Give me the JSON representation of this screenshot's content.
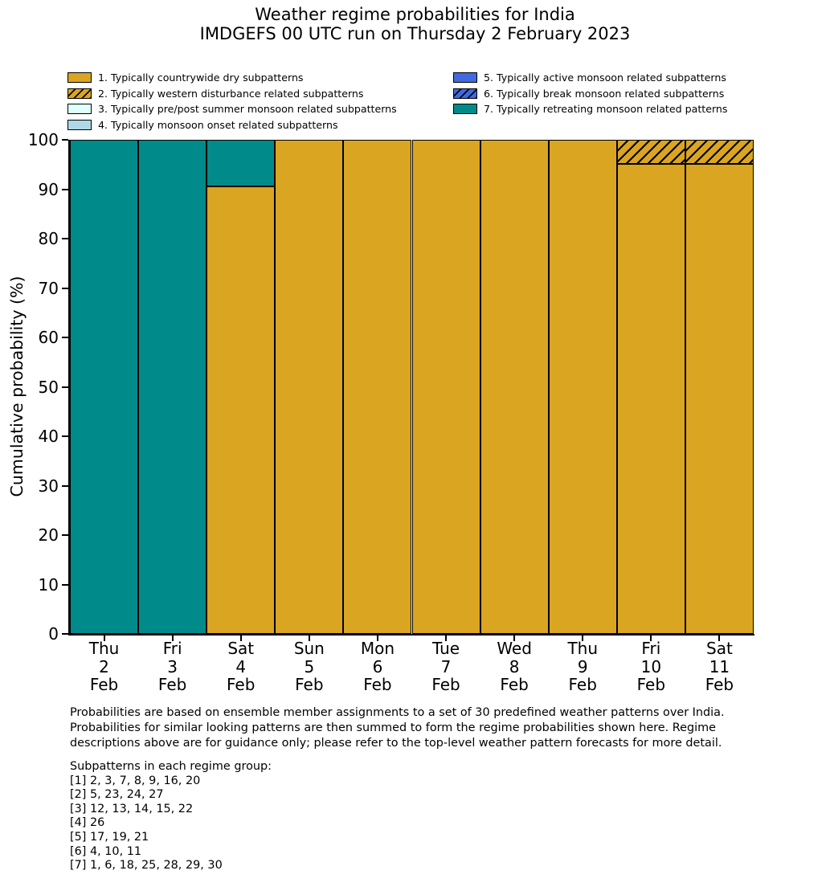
{
  "title": "Weather regime probabilities for India",
  "subtitle": "IMDGEFS 00 UTC run on Thursday 2 February 2023",
  "colors": {
    "regime_dry": "#DAA520",
    "regime_western_disturbance": "#DAA520",
    "regime_prepost_summer_monsoon": "#E0FFFF",
    "regime_monsoon_onset": "#ADD8E6",
    "regime_active_monsoon": "#4169E1",
    "regime_break_monsoon": "#4169E1",
    "regime_retreating_monsoon": "#008B8B",
    "edge": "#000000",
    "background": "#FFFFFF"
  },
  "legend": {
    "items": [
      {
        "label": "1. Typically countrywide dry subpatterns",
        "color": "#DAA520",
        "hatch": false,
        "column": 0
      },
      {
        "label": "2. Typically western disturbance related subpatterns",
        "color": "#DAA520",
        "hatch": true,
        "column": 0
      },
      {
        "label": "3. Typically pre/post summer monsoon related subpatterns",
        "color": "#E0FFFF",
        "hatch": false,
        "column": 0
      },
      {
        "label": "4. Typically monsoon onset related subpatterns",
        "color": "#ADD8E6",
        "hatch": false,
        "column": 0
      },
      {
        "label": "5. Typically active monsoon related subpatterns",
        "color": "#4169E1",
        "hatch": false,
        "column": 1
      },
      {
        "label": "6. Typically break monsoon related subpatterns",
        "color": "#4169E1",
        "hatch": true,
        "column": 1
      },
      {
        "label": "7. Typically retreating monsoon related patterns",
        "color": "#008B8B",
        "hatch": false,
        "column": 1
      }
    ]
  },
  "chart_data": {
    "type": "bar",
    "stacked": true,
    "title": "Weather regime probabilities for India",
    "subtitle": "IMDGEFS 00 UTC run on Thursday 2 February 2023",
    "xlabel": "",
    "ylabel": "Cumulative probability (%)",
    "ylim": [
      0,
      100
    ],
    "yticks": [
      0,
      10,
      20,
      30,
      40,
      50,
      60,
      70,
      80,
      90,
      100
    ],
    "grid": false,
    "legend_position": "upper-left-above-axes-two-columns",
    "categories": [
      [
        "Thu",
        "2",
        "Feb"
      ],
      [
        "Fri",
        "3",
        "Feb"
      ],
      [
        "Sat",
        "4",
        "Feb"
      ],
      [
        "Sun",
        "5",
        "Feb"
      ],
      [
        "Mon",
        "6",
        "Feb"
      ],
      [
        "Tue",
        "7",
        "Feb"
      ],
      [
        "Wed",
        "8",
        "Feb"
      ],
      [
        "Thu",
        "9",
        "Feb"
      ],
      [
        "Fri",
        "10",
        "Feb"
      ],
      [
        "Sat",
        "11",
        "Feb"
      ]
    ],
    "series": [
      {
        "name": "1. Typically countrywide dry subpatterns",
        "color": "#DAA520",
        "hatch": false,
        "values": [
          0,
          0,
          90.5,
          100,
          100,
          100,
          100,
          100,
          95.2,
          95.2
        ]
      },
      {
        "name": "2. Typically western disturbance related subpatterns",
        "color": "#DAA520",
        "hatch": true,
        "values": [
          0,
          0,
          0,
          0,
          0,
          0,
          0,
          0,
          4.8,
          4.8
        ]
      },
      {
        "name": "3. Typically pre/post summer monsoon related subpatterns",
        "color": "#E0FFFF",
        "hatch": false,
        "values": [
          0,
          0,
          0,
          0,
          0,
          0,
          0,
          0,
          0,
          0
        ]
      },
      {
        "name": "4. Typically monsoon onset related subpatterns",
        "color": "#ADD8E6",
        "hatch": false,
        "values": [
          0,
          0,
          0,
          0,
          0,
          0,
          0,
          0,
          0,
          0
        ]
      },
      {
        "name": "5. Typically active monsoon related subpatterns",
        "color": "#4169E1",
        "hatch": false,
        "values": [
          0,
          0,
          0,
          0,
          0,
          0,
          0,
          0,
          0,
          0
        ]
      },
      {
        "name": "6. Typically break monsoon related subpatterns",
        "color": "#4169E1",
        "hatch": true,
        "values": [
          0,
          0,
          0,
          0,
          0,
          0,
          0,
          0,
          0,
          0
        ]
      },
      {
        "name": "7. Typically retreating monsoon related patterns",
        "color": "#008B8B",
        "hatch": false,
        "values": [
          100,
          100,
          9.5,
          0,
          0,
          0,
          0,
          0,
          0,
          0
        ]
      }
    ]
  },
  "footnotes": {
    "paragraph": [
      "Probabilities are based on ensemble member assignments to a set of 30 predefined weather patterns over India.",
      "Probabilities for similar looking patterns are then summed to form the regime probabilities shown here. Regime",
      "descriptions above are for guidance only; please refer to the top-level weather pattern forecasts for more detail."
    ],
    "subpatterns_title": "Subpatterns in each regime group:",
    "subpatterns": [
      "[1] 2, 3, 7, 8, 9, 16, 20",
      "[2] 5, 23, 24, 27",
      "[3] 12, 13, 14, 15, 22",
      "[4] 26",
      "[5] 17, 19, 21",
      "[6] 4, 10, 11",
      "[7] 1, 6, 18, 25, 28, 29, 30"
    ]
  }
}
